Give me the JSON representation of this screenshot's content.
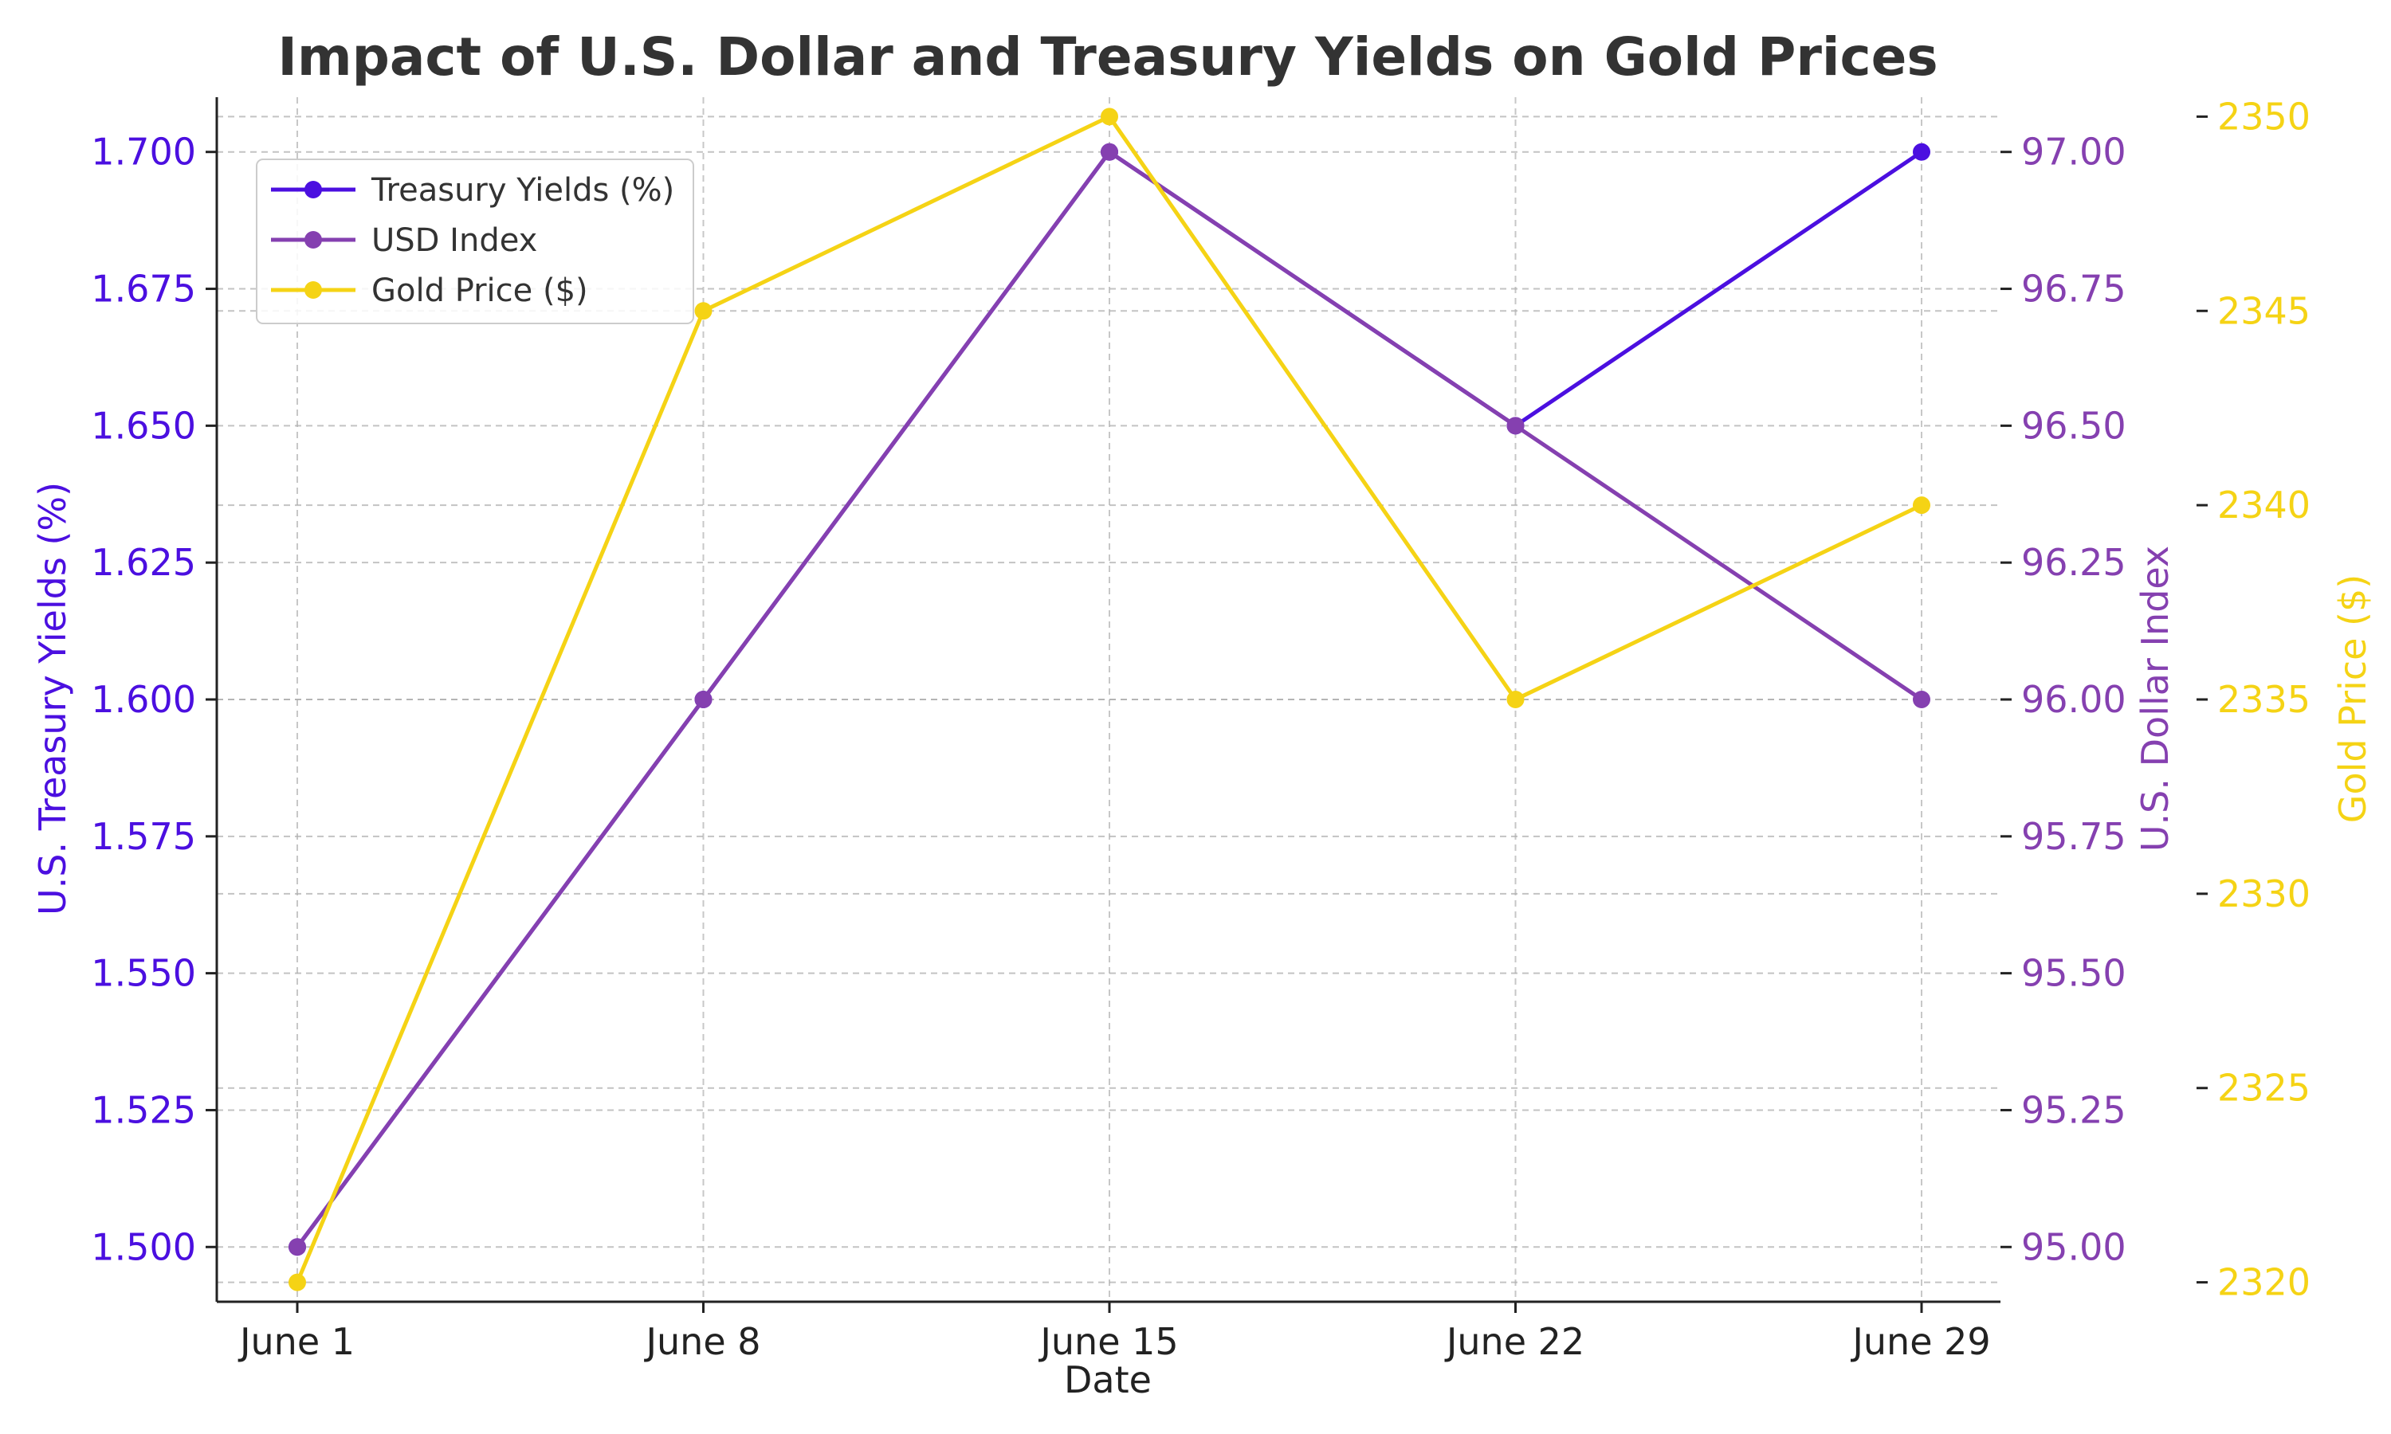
{
  "colors": {
    "treasury": "#4b0fe0",
    "usd": "#8540b0",
    "gold": "#f5d315",
    "text": "#333333",
    "grid": "#b0b0b0"
  },
  "chart_data": {
    "type": "line",
    "title": "Impact of U.S. Dollar and Treasury Yields on Gold Prices",
    "xlabel": "Date",
    "categories": [
      "June 1",
      "June 8",
      "June 15",
      "June 22",
      "June 29"
    ],
    "grid": true,
    "legend_position": "top-left",
    "series": [
      {
        "name": "Treasury Yields (%)",
        "axis": "left",
        "values": [
          1.5,
          1.6,
          1.7,
          1.65,
          1.7
        ]
      },
      {
        "name": "USD Index",
        "axis": "right",
        "values": [
          95.0,
          96.0,
          97.0,
          96.5,
          96.0
        ]
      },
      {
        "name": "Gold Price ($)",
        "axis": "right2",
        "values": [
          2320,
          2345,
          2350,
          2335,
          2340
        ]
      }
    ],
    "axes": {
      "left": {
        "label": "U.S. Treasury Yields (%)",
        "ylim": [
          1.49,
          1.71
        ],
        "ticks": [
          "1.500",
          "1.525",
          "1.550",
          "1.575",
          "1.600",
          "1.625",
          "1.650",
          "1.675",
          "1.700"
        ]
      },
      "right": {
        "label": "U.S. Dollar Index",
        "ylim": [
          94.9,
          97.1
        ],
        "ticks": [
          "95.00",
          "95.25",
          "95.50",
          "95.75",
          "96.00",
          "96.25",
          "96.50",
          "96.75",
          "97.00"
        ]
      },
      "right2": {
        "label": "Gold Price ($)",
        "ylim": [
          2319.5,
          2350.5
        ],
        "ticks": [
          "2320",
          "2325",
          "2330",
          "2335",
          "2340",
          "2345",
          "2350"
        ]
      }
    }
  }
}
